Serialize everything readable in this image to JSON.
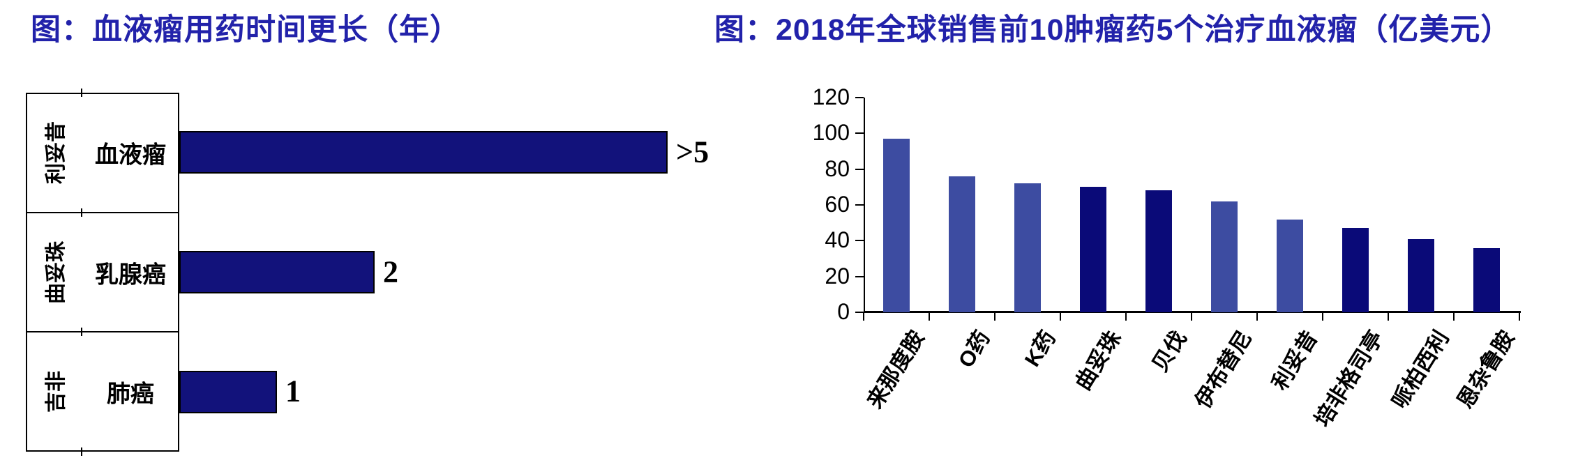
{
  "colors": {
    "title_blue": "#2222AA",
    "left_bar_navy": "#12127B",
    "slate_blue": "#3D4CA1",
    "dark_navy": "#0A0A78",
    "axis_black": "#000000"
  },
  "chart_data": [
    {
      "type": "bar",
      "orientation": "horizontal",
      "title": "图：血液瘤用药时间更长（年）",
      "unit": "年",
      "xlim": [
        0,
        5
      ],
      "grid": false,
      "legend": false,
      "rows": [
        {
          "drug": "利妥昔",
          "indication": "血液瘤",
          "value": 5,
          "label": ">5"
        },
        {
          "drug": "曲妥珠",
          "indication": "乳腺癌",
          "value": 2,
          "label": "2"
        },
        {
          "drug": "吉非",
          "indication": "肺癌",
          "value": 1,
          "label": "1"
        }
      ]
    },
    {
      "type": "bar",
      "orientation": "vertical",
      "title": "图：2018年全球销售前10肿瘤药5个治疗血液瘤（亿美元）",
      "unit": "亿美元",
      "ylim": [
        0,
        120
      ],
      "yticks": [
        0,
        20,
        40,
        60,
        80,
        100,
        120
      ],
      "grid": false,
      "legend": false,
      "categories": [
        "来那度胺",
        "O药",
        "K药",
        "曲妥珠",
        "贝伐",
        "伊布替尼",
        "利妥昔",
        "培非格司亭",
        "哌柏西利",
        "恩杂鲁胺"
      ],
      "values": [
        97,
        76,
        72,
        70,
        68,
        62,
        52,
        47,
        41,
        36
      ],
      "bar_colors": [
        "slate",
        "slate",
        "slate",
        "navy",
        "navy",
        "slate",
        "slate",
        "navy",
        "navy",
        "navy"
      ]
    }
  ]
}
